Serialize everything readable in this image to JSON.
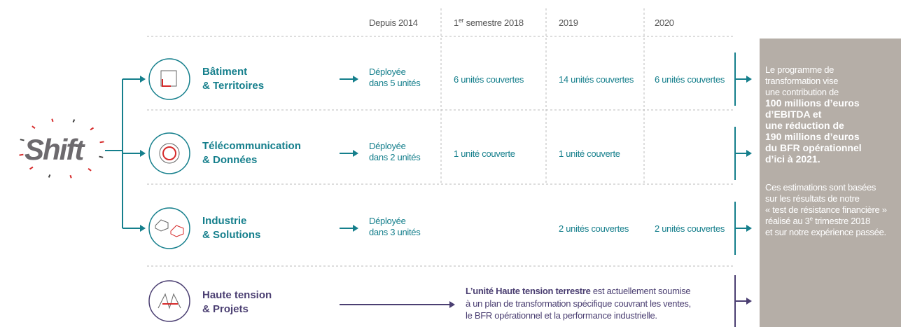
{
  "logo": "Shift",
  "columns": [
    "Depuis 2014",
    {
      "main": "1",
      "sup": "er",
      "rest": " semestre 2018"
    },
    "2019",
    "2020"
  ],
  "rows": [
    {
      "label": [
        "Bâtiment",
        "& Territoires"
      ],
      "deployed": [
        "Déployée",
        "dans 5 unités"
      ],
      "cells": [
        "6 unités couvertes",
        "14 unités couvertes",
        "6 unités couvertes"
      ]
    },
    {
      "label": [
        "Télécommunication",
        "& Données"
      ],
      "deployed": [
        "Déployée",
        "dans 2 unités"
      ],
      "cells": [
        "1 unité couverte",
        "1 unité couverte",
        null
      ]
    },
    {
      "label": [
        "Industrie",
        "& Solutions"
      ],
      "deployed": [
        "Déployée",
        "dans 3 unités"
      ],
      "cells": [
        null,
        "2 unités couvertes",
        "2 unités couvertes"
      ]
    }
  ],
  "special": {
    "label": [
      "Haute tension",
      "& Projets"
    ],
    "note_bold": "L’unité Haute tension terrestre",
    "note_first": " est actuellement soumise",
    "note_lines": [
      "à un plan de transformation spécifique couvrant les ventes,",
      "le BFR opérationnel et la performance industrielle."
    ]
  },
  "summary": {
    "intro": [
      "Le programme de",
      "transformation vise",
      "une contribution de"
    ],
    "highlight": [
      "100 millions d’euros",
      "d’EBITDA et",
      "une réduction de",
      "190 millions d’euros",
      "du BFR opérationnel",
      "d’ici à 2021."
    ],
    "note": [
      "Ces estimations sont basées",
      "sur les résultats de notre",
      "« test de résistance financière »"
    ],
    "note_sup_line": {
      "before": "réalisé au 3",
      "sup": "e",
      "after": " trimestre 2018"
    },
    "note_end": "et sur notre expérience passée."
  }
}
